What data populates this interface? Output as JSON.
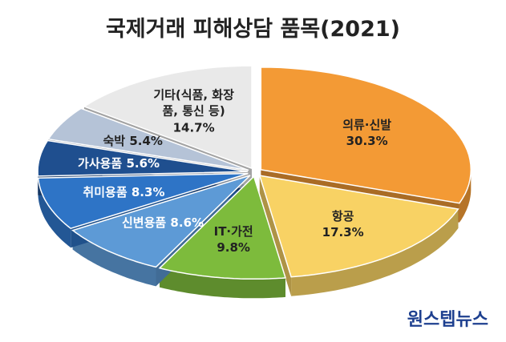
{
  "title": "국제거래 피해상담 품목(2021)",
  "source": "원스텝뉴스",
  "chart_data": {
    "type": "pie",
    "categories": [
      "의류·신발",
      "항공",
      "IT·가전",
      "신변용품",
      "취미용품",
      "가사용품",
      "숙박",
      "기타(식품, 화장품, 통신 등)"
    ],
    "values": [
      30.3,
      17.3,
      9.8,
      8.6,
      8.3,
      5.6,
      5.4,
      14.7
    ],
    "value_labels": [
      "30.3%",
      "17.3%",
      "9.8%",
      "8.6%",
      "8.3%",
      "5.6%",
      "5.4%",
      "14.7%"
    ],
    "colors": [
      "#f39a35",
      "#f8d264",
      "#7dbb3c",
      "#5d9ad6",
      "#2e74c6",
      "#1f4f8f",
      "#b5c3d7",
      "#e9e9e9"
    ]
  }
}
